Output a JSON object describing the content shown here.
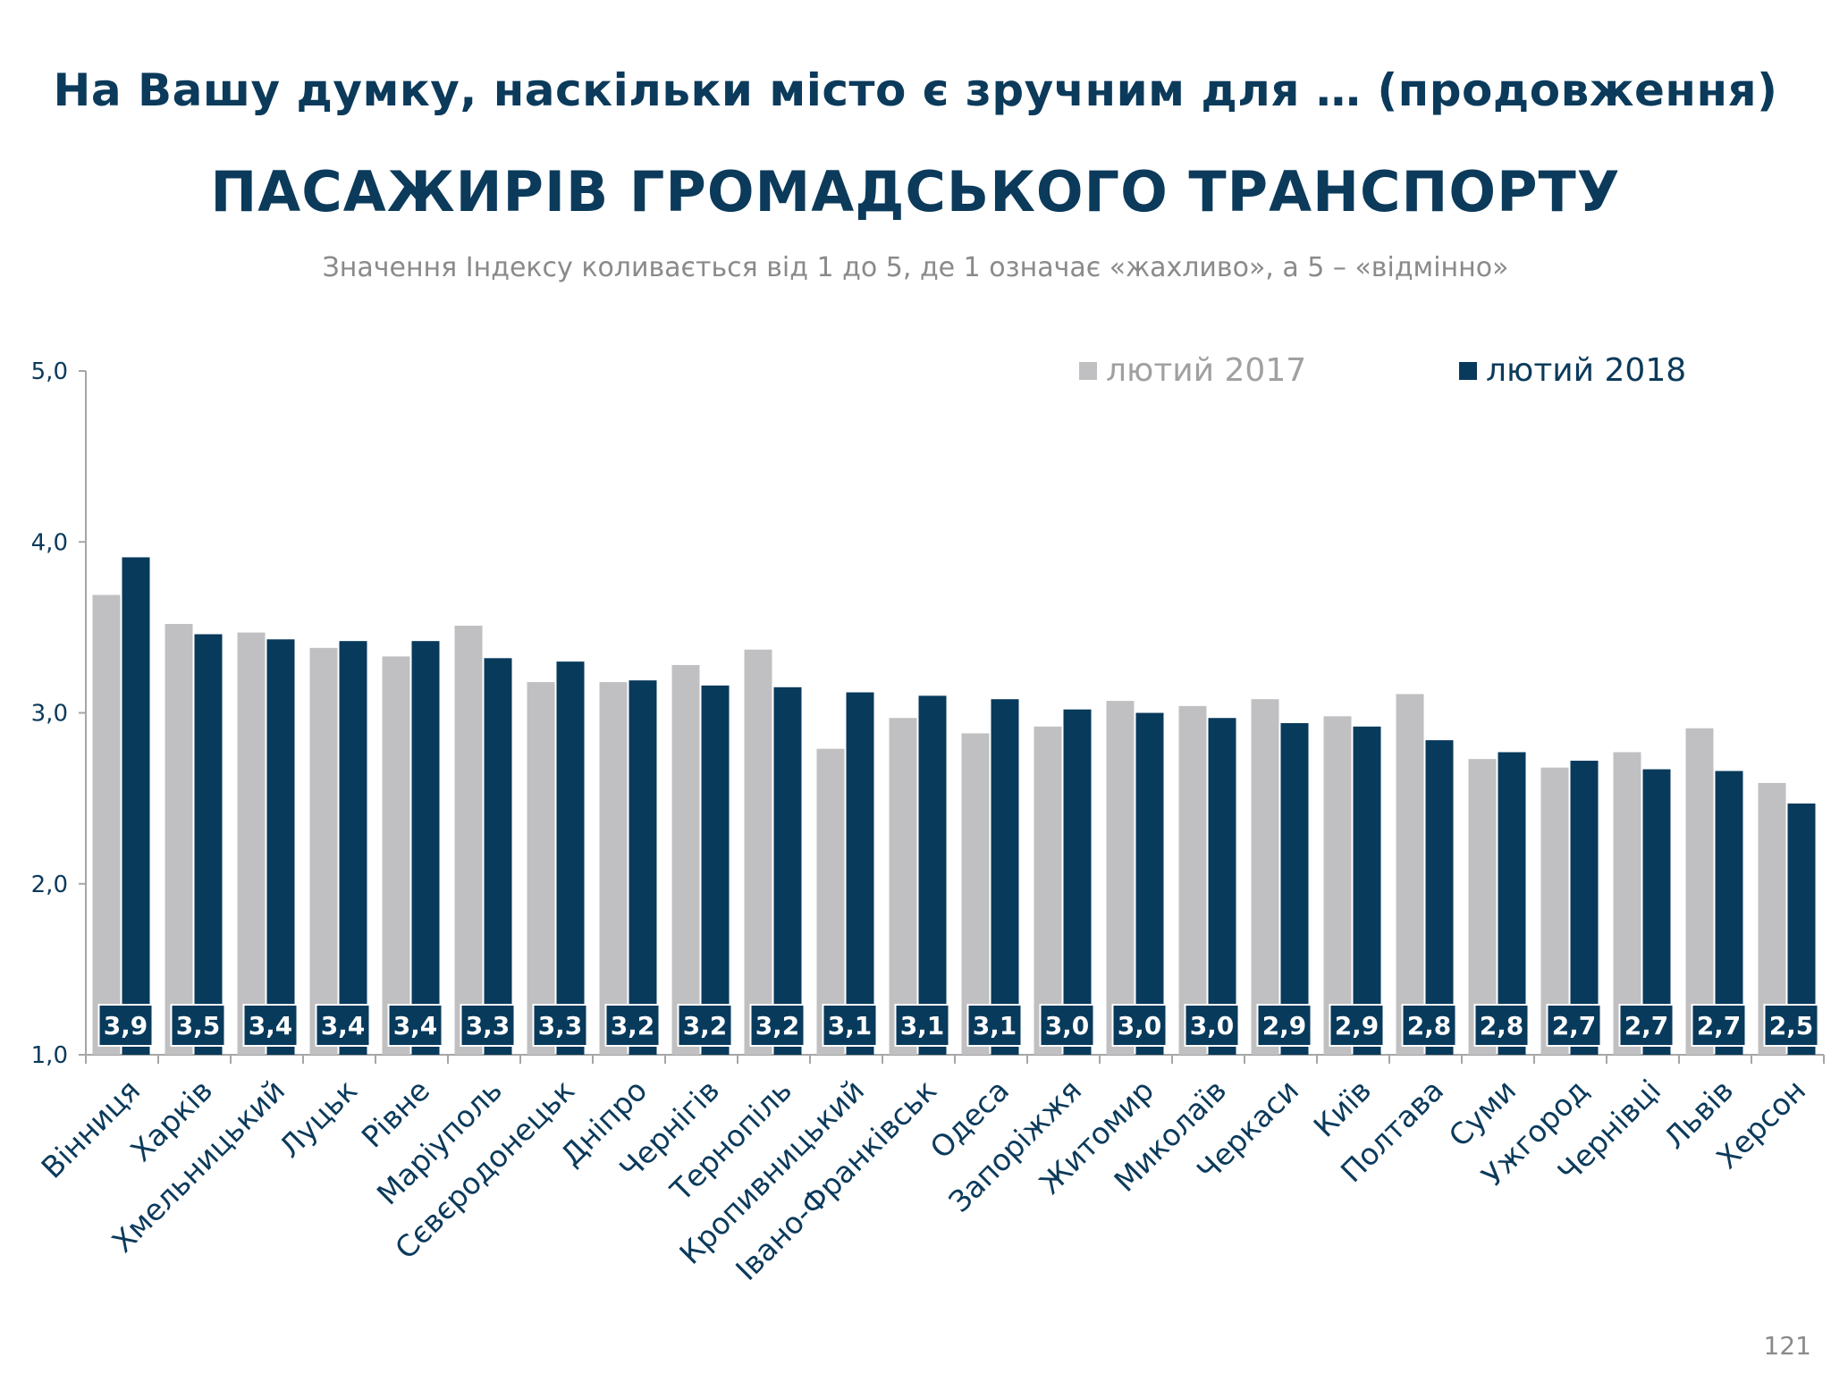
{
  "header": {
    "title": "На Вашу думку, наскільки місто є зручним для … (продовження)",
    "subtitle": "ПАСАЖИРІВ ГРОМАДСЬКОГО ТРАНСПОРТУ",
    "note": "Значення Індексу коливається від 1 до 5, де 1 означає «жахливо», а 5 – «відмінно»"
  },
  "page_number": "121",
  "colors": {
    "series_2017": "#c0c0c2",
    "series_2018": "#083a5c",
    "axis": "#a6a6a6",
    "label_text": "#0b3a5b"
  },
  "chart_data": {
    "type": "bar",
    "title": "ПАСАЖИРІВ ГРОМАДСЬКОГО ТРАНСПОРТУ",
    "xlabel": "",
    "ylabel": "",
    "ylim": [
      1.0,
      5.0
    ],
    "yticks": [
      "1,0",
      "2,0",
      "3,0",
      "4,0",
      "5,0"
    ],
    "ytick_values": [
      1,
      2,
      3,
      4,
      5
    ],
    "legend_position": "top-right",
    "categories": [
      "Вінниця",
      "Харків",
      "Хмельницький",
      "Луцьк",
      "Рівне",
      "Маріуполь",
      "Сєвєродонецьк",
      "Дніпро",
      "Чернігів",
      "Тернопіль",
      "Кропивницький",
      "Івано-Франківськ",
      "Одеса",
      "Запоріжжя",
      "Житомир",
      "Миколаїв",
      "Черкаси",
      "Київ",
      "Полтава",
      "Суми",
      "Ужгород",
      "Чернівці",
      "Львів",
      "Херсон"
    ],
    "series": [
      {
        "name": "лютий 2017",
        "values": [
          3.69,
          3.52,
          3.47,
          3.38,
          3.33,
          3.51,
          3.18,
          3.18,
          3.28,
          3.37,
          2.79,
          2.97,
          2.88,
          2.92,
          3.07,
          3.04,
          3.08,
          2.98,
          3.11,
          2.73,
          2.68,
          2.77,
          2.91,
          2.59
        ]
      },
      {
        "name": "лютий 2018",
        "values": [
          3.91,
          3.46,
          3.43,
          3.42,
          3.42,
          3.32,
          3.3,
          3.19,
          3.16,
          3.15,
          3.12,
          3.1,
          3.08,
          3.02,
          3.0,
          2.97,
          2.94,
          2.92,
          2.84,
          2.77,
          2.72,
          2.67,
          2.66,
          2.47
        ]
      }
    ],
    "data_labels": [
      "3,9",
      "3,5",
      "3,4",
      "3,4",
      "3,4",
      "3,3",
      "3,3",
      "3,2",
      "3,2",
      "3,2",
      "3,1",
      "3,1",
      "3,1",
      "3,0",
      "3,0",
      "3,0",
      "2,9",
      "2,9",
      "2,8",
      "2,8",
      "2,7",
      "2,7",
      "2,7",
      "2,5"
    ]
  }
}
